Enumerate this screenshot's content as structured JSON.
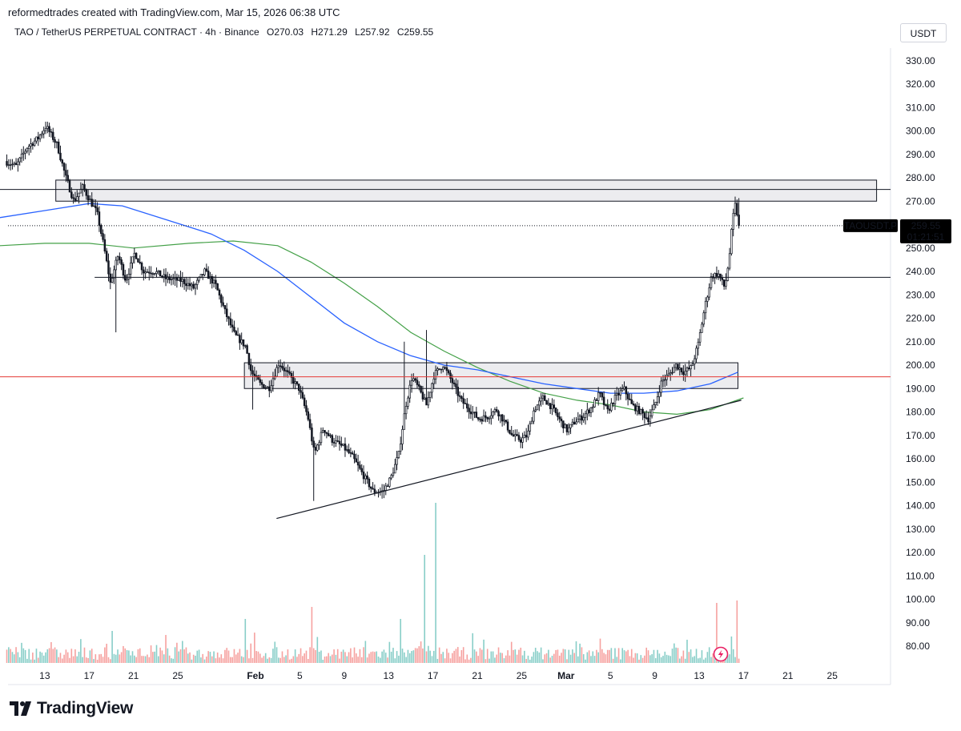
{
  "header": {
    "creator_line": "reformedtrades created with TradingView.com, Mar 15, 2026 06:38 UTC",
    "symbol": "TAO / TetherUS PERPETUAL CONTRACT · 4h · Binance",
    "open": "O270.03",
    "high": "H271.29",
    "low": "L257.92",
    "close": "C259.55"
  },
  "currency_button": "USDT",
  "brand": "TradingView",
  "price_label": {
    "symbol": "TAOUSDT.P",
    "price": "259.55",
    "countdown": "01:21:51"
  },
  "colors": {
    "up": "#131722",
    "down": "#131722",
    "sma_blue": "#2962ff",
    "sma_green": "#43a047",
    "red_line": "#e53935",
    "vol_up": "#26a69a",
    "vol_down": "#ef5350",
    "zone_fill": "#e6e6e9"
  },
  "chart_data": {
    "type": "candlestick",
    "interval": "4h",
    "y_axis": {
      "ticks": [
        "330.00",
        "320.00",
        "310.00",
        "300.00",
        "290.00",
        "280.00",
        "270.00",
        "260.00",
        "250.00",
        "240.00",
        "230.00",
        "220.00",
        "210.00",
        "200.00",
        "190.00",
        "180.00",
        "170.00",
        "160.00",
        "150.00",
        "140.00",
        "130.00",
        "120.00",
        "110.00",
        "100.00",
        "90.00",
        "80.00"
      ],
      "min": 80,
      "max": 330
    },
    "x_axis": {
      "ticks": [
        {
          "label": "13",
          "day": -19
        },
        {
          "label": "17",
          "day": -15
        },
        {
          "label": "21",
          "day": -11
        },
        {
          "label": "25",
          "day": -7
        },
        {
          "label": "Feb",
          "day": 0
        },
        {
          "label": "5",
          "day": 4
        },
        {
          "label": "9",
          "day": 8
        },
        {
          "label": "13",
          "day": 12
        },
        {
          "label": "17",
          "day": 16
        },
        {
          "label": "21",
          "day": 20
        },
        {
          "label": "25",
          "day": 24
        },
        {
          "label": "Mar",
          "day": 28
        },
        {
          "label": "5",
          "day": 32
        },
        {
          "label": "9",
          "day": 36
        },
        {
          "label": "13",
          "day": 40
        },
        {
          "label": "17",
          "day": 44
        },
        {
          "label": "21",
          "day": 48
        },
        {
          "label": "25",
          "day": 52
        }
      ],
      "day_unit": "days from Feb 1"
    },
    "price_path": [
      [
        -22.5,
        287
      ],
      [
        -21.5,
        285
      ],
      [
        -20.5,
        293
      ],
      [
        -19.5,
        297
      ],
      [
        -18.8,
        302
      ],
      [
        -17.8,
        294
      ],
      [
        -17,
        280
      ],
      [
        -16.3,
        270
      ],
      [
        -15.5,
        276
      ],
      [
        -14.8,
        270
      ],
      [
        -14.2,
        265
      ],
      [
        -13.6,
        251
      ],
      [
        -13,
        235
      ],
      [
        -12.3,
        247
      ],
      [
        -11.6,
        236
      ],
      [
        -10.8,
        248
      ],
      [
        -10,
        240
      ],
      [
        -9,
        240
      ],
      [
        -8,
        237
      ],
      [
        -6.5,
        236
      ],
      [
        -5.5,
        233
      ],
      [
        -4.5,
        240
      ],
      [
        -3.5,
        234
      ],
      [
        -2.6,
        222
      ],
      [
        -1.8,
        213
      ],
      [
        -0.8,
        208
      ],
      [
        -0.3,
        197
      ],
      [
        0.5,
        192
      ],
      [
        1.3,
        190
      ],
      [
        2.2,
        201
      ],
      [
        3.2,
        195
      ],
      [
        4,
        190
      ],
      [
        4.8,
        178
      ],
      [
        5.4,
        162
      ],
      [
        6.2,
        173
      ],
      [
        7,
        168
      ],
      [
        8,
        165
      ],
      [
        8.8,
        161
      ],
      [
        9.8,
        153
      ],
      [
        10.7,
        146
      ],
      [
        11.6,
        146
      ],
      [
        12.3,
        152
      ],
      [
        13,
        162
      ],
      [
        13.6,
        182
      ],
      [
        14.2,
        195
      ],
      [
        14.8,
        190
      ],
      [
        15.5,
        183
      ],
      [
        16.2,
        196
      ],
      [
        17,
        200
      ],
      [
        17.8,
        193
      ],
      [
        18.6,
        185
      ],
      [
        19.4,
        181
      ],
      [
        20.2,
        177
      ],
      [
        21,
        178
      ],
      [
        21.8,
        181
      ],
      [
        22.5,
        176
      ],
      [
        23.2,
        170
      ],
      [
        24,
        168
      ],
      [
        24.6,
        170
      ],
      [
        25.2,
        181
      ],
      [
        26,
        186
      ],
      [
        26.8,
        182
      ],
      [
        27.6,
        176
      ],
      [
        28.2,
        172
      ],
      [
        28.9,
        176
      ],
      [
        29.6,
        178
      ],
      [
        30.4,
        182
      ],
      [
        31.1,
        188
      ],
      [
        31.8,
        180
      ],
      [
        32.5,
        186
      ],
      [
        33.3,
        190
      ],
      [
        34,
        183
      ],
      [
        34.8,
        180
      ],
      [
        35.5,
        177
      ],
      [
        36.1,
        183
      ],
      [
        36.7,
        193
      ],
      [
        37.4,
        196
      ],
      [
        38,
        200
      ],
      [
        38.7,
        197
      ],
      [
        39.4,
        199
      ],
      [
        40,
        209
      ],
      [
        40.6,
        225
      ],
      [
        41.2,
        238
      ],
      [
        41.8,
        239
      ],
      [
        42.4,
        233
      ],
      [
        42.8,
        246
      ],
      [
        43.1,
        262
      ],
      [
        43.4,
        270
      ],
      [
        43.6,
        259.55
      ]
    ],
    "sma_blue": [
      [
        -26.5,
        260
      ],
      [
        -23,
        263
      ],
      [
        -19,
        266
      ],
      [
        -15,
        269
      ],
      [
        -12,
        268
      ],
      [
        -8,
        262
      ],
      [
        -4,
        256
      ],
      [
        -1,
        249
      ],
      [
        2,
        240
      ],
      [
        5,
        229
      ],
      [
        8,
        218
      ],
      [
        11,
        210
      ],
      [
        14,
        204
      ],
      [
        17,
        200
      ],
      [
        20,
        198
      ],
      [
        23,
        195
      ],
      [
        26,
        192
      ],
      [
        29,
        190
      ],
      [
        32,
        188
      ],
      [
        35,
        188
      ],
      [
        38,
        189
      ],
      [
        41,
        192
      ],
      [
        43.5,
        197
      ]
    ],
    "sma_green": [
      [
        -26.5,
        252
      ],
      [
        -23,
        251
      ],
      [
        -19,
        252
      ],
      [
        -15,
        252
      ],
      [
        -11,
        250
      ],
      [
        -6,
        252
      ],
      [
        -2,
        253
      ],
      [
        2,
        251
      ],
      [
        5,
        244
      ],
      [
        8,
        235
      ],
      [
        11,
        225
      ],
      [
        14,
        214
      ],
      [
        17,
        206
      ],
      [
        20,
        199
      ],
      [
        23,
        193
      ],
      [
        26,
        188
      ],
      [
        29,
        185
      ],
      [
        32,
        183
      ],
      [
        35,
        180
      ],
      [
        38,
        179
      ],
      [
        41,
        181
      ],
      [
        44,
        186
      ]
    ],
    "lines": [
      {
        "name": "zone-top",
        "type": "zone",
        "x1": -18,
        "x2": 56,
        "y1": 270,
        "y2": 279
      },
      {
        "name": "zone-mid",
        "type": "zone",
        "x1": -1,
        "x2": 43.5,
        "y1": 190,
        "y2": 201
      },
      {
        "name": "line-275",
        "type": "hline",
        "x1": -26.5,
        "x2": 60,
        "y": 275
      },
      {
        "name": "line-237",
        "type": "hline",
        "x1": -14.5,
        "x2": 60,
        "y": 237.5
      },
      {
        "name": "line-195-red",
        "type": "hline",
        "x1": -26.5,
        "x2": 60,
        "y": 195
      },
      {
        "name": "trendline",
        "type": "segment",
        "x1": 1.9,
        "y1": 134.5,
        "x2": 43.8,
        "y2": 185
      }
    ],
    "last_price": 259.55,
    "volume_peaks": [
      {
        "day": 16.2,
        "h": 200,
        "dir": "down"
      },
      {
        "day": 15.2,
        "h": 135,
        "dir": "down"
      },
      {
        "day": 13,
        "h": 55,
        "dir": "up"
      },
      {
        "day": 5,
        "h": 70,
        "dir": "up"
      },
      {
        "day": 41.5,
        "h": 75,
        "dir": "down"
      },
      {
        "day": 43.4,
        "h": 78,
        "dir": "up"
      },
      {
        "day": -13,
        "h": 40,
        "dir": "down"
      },
      {
        "day": -1,
        "h": 55,
        "dir": "down"
      }
    ]
  }
}
